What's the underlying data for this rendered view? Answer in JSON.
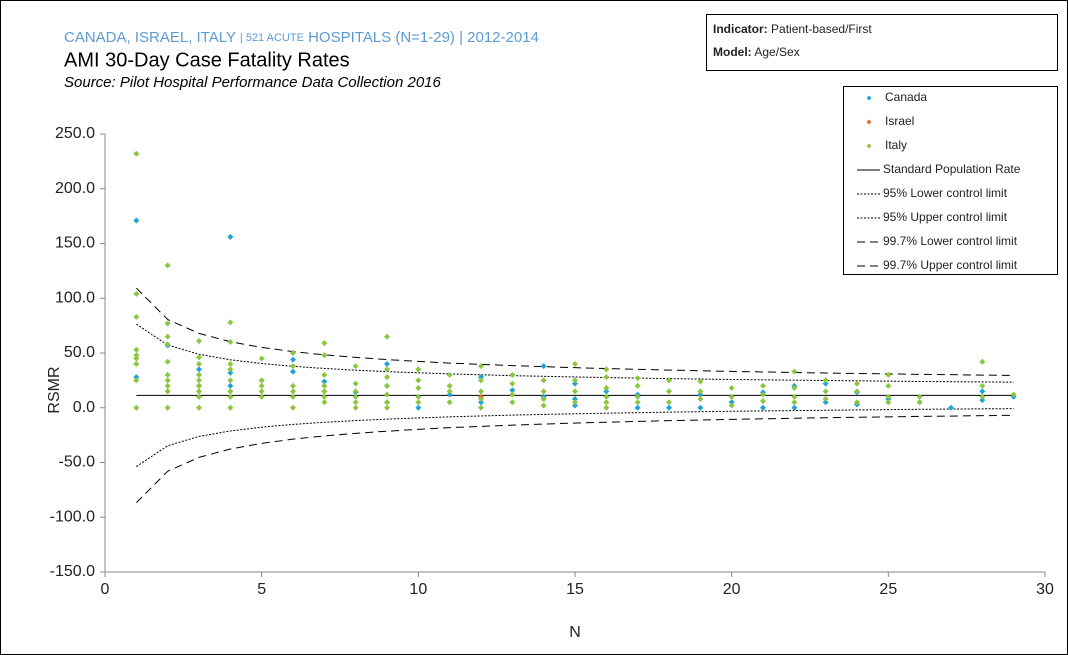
{
  "chart_data": {
    "type": "scatter",
    "header": [
      "CANADA, ISRAEL, ITALY",
      "| 521 ACUTE",
      "HOSPITALS (N=1-29) | 2012-2014"
    ],
    "title": "AMI 30-Day Case Fatality Rates",
    "subtitle": "Source: Pilot Hospital Performance Data Collection 2016",
    "info": [
      {
        "label": "Indicator:",
        "value": "Patient-based/First"
      },
      {
        "label": "Model:",
        "value": "Age/Sex"
      }
    ],
    "x_label": "N",
    "y_label": "RSMR",
    "xlim": [
      0,
      30
    ],
    "xticks": [
      0,
      5,
      10,
      15,
      20,
      25,
      30
    ],
    "ylim": [
      -150,
      250
    ],
    "yticks": [
      {
        "value": -150,
        "label": "-150.0"
      },
      {
        "value": -100,
        "label": "-100.0"
      },
      {
        "value": -50,
        "label": "-50.0"
      },
      {
        "value": 0,
        "label": "0.0"
      },
      {
        "value": 50,
        "label": "50.0"
      },
      {
        "value": 100,
        "label": "100.0"
      },
      {
        "value": 150,
        "label": "150.0"
      },
      {
        "value": 200,
        "label": "200.0"
      },
      {
        "value": 250,
        "label": "250.0"
      }
    ],
    "grid": false,
    "legend": "top-right",
    "series": [
      {
        "name": "Canada",
        "color": "#1ea3d9",
        "mark": "point",
        "x": [
          1,
          1,
          2,
          3,
          3,
          4,
          4,
          4,
          6,
          6,
          7,
          8,
          9,
          9,
          9,
          10,
          10,
          11,
          12,
          12,
          13,
          14,
          14,
          15,
          15,
          15,
          16,
          17,
          17,
          18,
          19,
          19,
          20,
          21,
          21,
          22,
          22,
          23,
          23,
          24,
          24,
          25,
          26,
          27,
          28,
          28,
          29
        ],
        "values": [
          171,
          28,
          57,
          10,
          35,
          156,
          32,
          20,
          44,
          33,
          24,
          14,
          40,
          20,
          5,
          0,
          10,
          12,
          28,
          5,
          16,
          38,
          10,
          22,
          2,
          8,
          15,
          0,
          12,
          0,
          0,
          12,
          5,
          0,
          14,
          0,
          20,
          5,
          22,
          3,
          14,
          8,
          5,
          0,
          7,
          15,
          10
        ]
      },
      {
        "name": "Israel",
        "color": "#e46c2c",
        "mark": "point",
        "x": [
          3,
          7,
          12
        ],
        "values": [
          20,
          15,
          10
        ]
      },
      {
        "name": "Italy",
        "color": "#8cc63f",
        "mark": "point",
        "x": [
          1,
          1,
          1,
          1,
          1,
          1,
          1,
          1,
          1,
          2,
          2,
          2,
          2,
          2,
          2,
          2,
          2,
          2,
          2,
          3,
          3,
          3,
          3,
          3,
          3,
          3,
          3,
          3,
          4,
          4,
          4,
          4,
          4,
          4,
          4,
          4,
          5,
          5,
          5,
          5,
          5,
          6,
          6,
          6,
          6,
          6,
          6,
          7,
          7,
          7,
          7,
          7,
          7,
          7,
          8,
          8,
          8,
          8,
          8,
          8,
          9,
          9,
          9,
          9,
          9,
          9,
          9,
          10,
          10,
          10,
          10,
          10,
          11,
          11,
          11,
          11,
          12,
          12,
          12,
          12,
          12,
          13,
          13,
          13,
          13,
          14,
          14,
          14,
          14,
          15,
          15,
          15,
          15,
          16,
          16,
          16,
          16,
          16,
          16,
          17,
          17,
          17,
          17,
          18,
          18,
          18,
          19,
          19,
          19,
          20,
          20,
          20,
          21,
          21,
          21,
          22,
          22,
          22,
          22,
          23,
          23,
          23,
          24,
          24,
          24,
          25,
          25,
          25,
          25,
          26,
          26,
          28,
          28,
          28,
          29
        ],
        "values": [
          232,
          104,
          83,
          53,
          48,
          45,
          40,
          25,
          0,
          130,
          77,
          65,
          58,
          42,
          30,
          25,
          20,
          15,
          0,
          61,
          46,
          40,
          30,
          25,
          20,
          15,
          10,
          0,
          78,
          60,
          40,
          35,
          25,
          15,
          10,
          0,
          45,
          25,
          20,
          15,
          10,
          50,
          38,
          20,
          15,
          10,
          0,
          59,
          48,
          30,
          20,
          15,
          10,
          5,
          38,
          22,
          15,
          10,
          5,
          0,
          65,
          35,
          28,
          20,
          12,
          5,
          0,
          35,
          25,
          18,
          10,
          5,
          30,
          20,
          15,
          5,
          38,
          25,
          15,
          8,
          0,
          30,
          22,
          12,
          5,
          25,
          15,
          8,
          2,
          40,
          25,
          15,
          5,
          35,
          28,
          18,
          10,
          5,
          0,
          27,
          20,
          10,
          5,
          25,
          15,
          5,
          24,
          15,
          8,
          18,
          10,
          2,
          20,
          12,
          6,
          33,
          18,
          10,
          5,
          25,
          15,
          8,
          22,
          15,
          5,
          30,
          20,
          10,
          5,
          10,
          5,
          42,
          20,
          10,
          12
        ]
      },
      {
        "name": "Standard Population Rate",
        "color": "#000000",
        "mark": "line",
        "style": "solid",
        "x": [
          1,
          29
        ],
        "values": [
          11.3,
          11.3
        ]
      },
      {
        "name": "95% Lower control limit",
        "color": "#000000",
        "mark": "line",
        "style": "dotted",
        "x": [
          1,
          2,
          3,
          4,
          5,
          6,
          7,
          8,
          9,
          10,
          11,
          12,
          13,
          14,
          15,
          16,
          17,
          18,
          19,
          20,
          21,
          22,
          23,
          24,
          25,
          26,
          27,
          28,
          29
        ],
        "values": [
          -53.7,
          -34.7,
          -26.2,
          -21.2,
          -17.8,
          -15.2,
          -13.3,
          -11.7,
          -10.4,
          -9.3,
          -8.3,
          -7.5,
          -6.7,
          -6.1,
          -5.5,
          -5.0,
          -4.5,
          -4.0,
          -3.6,
          -3.2,
          -2.9,
          -2.6,
          -2.3,
          -2.0,
          -1.7,
          -1.4,
          -1.2,
          -1.0,
          -0.8
        ]
      },
      {
        "name": "95% Upper control limit",
        "color": "#000000",
        "mark": "line",
        "style": "dotted",
        "x": [
          1,
          2,
          3,
          4,
          5,
          6,
          7,
          8,
          9,
          10,
          11,
          12,
          13,
          14,
          15,
          16,
          17,
          18,
          19,
          20,
          21,
          22,
          23,
          24,
          25,
          26,
          27,
          28,
          29
        ],
        "values": [
          76.3,
          57.3,
          48.8,
          43.8,
          40.4,
          37.8,
          35.9,
          34.3,
          33.0,
          31.9,
          30.9,
          30.1,
          29.3,
          28.7,
          28.1,
          27.6,
          27.1,
          26.6,
          26.2,
          25.8,
          25.5,
          25.2,
          24.9,
          24.6,
          24.3,
          24.0,
          23.8,
          23.6,
          23.4
        ]
      },
      {
        "name": "99.7% Lower control limit",
        "color": "#000000",
        "mark": "line",
        "style": "dashed",
        "x": [
          1,
          2,
          3,
          4,
          5,
          6,
          7,
          8,
          9,
          10,
          11,
          12,
          13,
          14,
          15,
          16,
          17,
          18,
          19,
          20,
          21,
          22,
          23,
          24,
          25,
          26,
          27,
          28,
          29
        ],
        "values": [
          -86.7,
          -58.0,
          -45.3,
          -37.7,
          -32.5,
          -28.7,
          -25.7,
          -23.4,
          -21.4,
          -19.7,
          -18.2,
          -17.0,
          -15.9,
          -14.9,
          -14.0,
          -13.2,
          -12.5,
          -11.8,
          -11.2,
          -10.6,
          -10.1,
          -9.6,
          -9.1,
          -8.7,
          -8.3,
          -7.9,
          -7.6,
          -7.2,
          -6.9
        ]
      },
      {
        "name": "99.7% Upper control limit",
        "color": "#000000",
        "mark": "line",
        "style": "dashed",
        "x": [
          1,
          2,
          3,
          4,
          5,
          6,
          7,
          8,
          9,
          10,
          11,
          12,
          13,
          14,
          15,
          16,
          17,
          18,
          19,
          20,
          21,
          22,
          23,
          24,
          25,
          26,
          27,
          28,
          29
        ],
        "values": [
          109.3,
          80.6,
          67.9,
          60.3,
          55.1,
          51.3,
          48.3,
          46.0,
          44.0,
          42.3,
          40.8,
          39.6,
          38.5,
          37.5,
          36.6,
          35.8,
          35.1,
          34.4,
          33.8,
          33.2,
          32.7,
          32.2,
          31.7,
          31.3,
          30.9,
          30.5,
          30.2,
          29.8,
          29.5
        ]
      }
    ]
  }
}
